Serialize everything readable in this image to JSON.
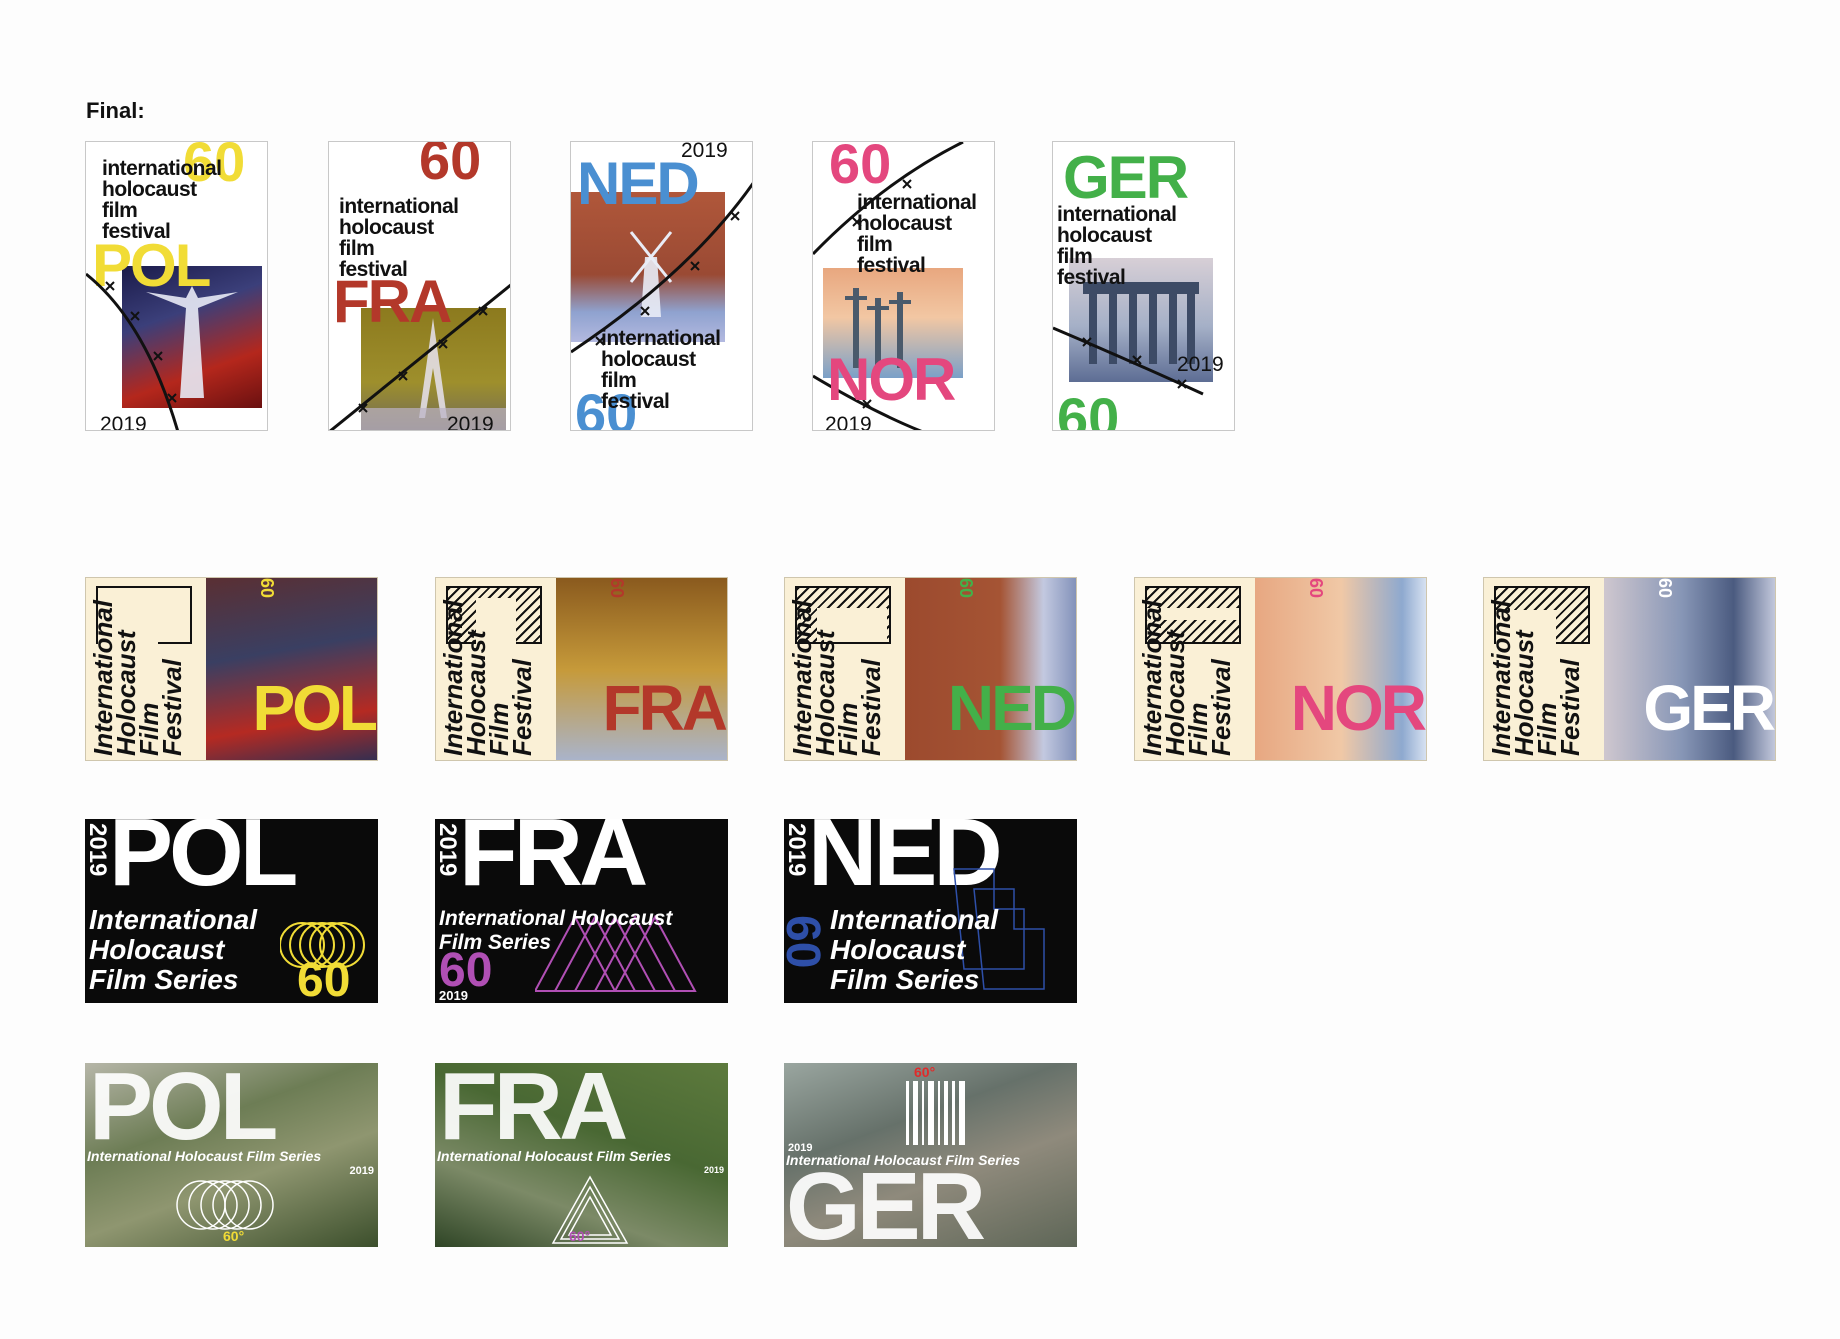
{
  "header": {
    "label": "Final:"
  },
  "colors": {
    "pol": "#f1dc36",
    "fra": "#b3382a",
    "ned": "#4a8fd1",
    "nor": "#e4477e",
    "ger": "#43b049",
    "fra_purple": "#b04fb4",
    "ned_blue": "#2e4fa8"
  },
  "posters": [
    {
      "code": "POL",
      "number": "60",
      "year": "2019",
      "title": [
        "international",
        "holocaust",
        "film",
        "festival"
      ]
    },
    {
      "code": "FRA",
      "number": "60",
      "year": "2019",
      "title": [
        "international",
        "holocaust",
        "film",
        "festival"
      ]
    },
    {
      "code": "NED",
      "number": "60",
      "year": "2019",
      "title": [
        "international",
        "holocaust",
        "film",
        "festival"
      ]
    },
    {
      "code": "NOR",
      "number": "60",
      "year": "2019",
      "title": [
        "international",
        "holocaust",
        "film",
        "festival"
      ]
    },
    {
      "code": "GER",
      "number": "60",
      "year": "2019",
      "title": [
        "international",
        "holocaust",
        "film",
        "festival"
      ]
    }
  ],
  "horizontal_cards": [
    {
      "code": "POL",
      "number": "60",
      "title": [
        "International",
        "Holocaust",
        "Film",
        "Festival"
      ]
    },
    {
      "code": "FRA",
      "number": "60",
      "title": [
        "International",
        "Holocaust",
        "Film",
        "Festival"
      ]
    },
    {
      "code": "NED",
      "number": "60",
      "title": [
        "International",
        "Holocaust",
        "Film",
        "Festival"
      ]
    },
    {
      "code": "NOR",
      "number": "60",
      "title": [
        "International",
        "Holocaust",
        "Film",
        "Festival"
      ]
    },
    {
      "code": "GER",
      "number": "60",
      "title": [
        "International",
        "Holocaust",
        "Film",
        "Festival"
      ]
    }
  ],
  "black_cards": [
    {
      "code": "POL",
      "year": "2019",
      "number": "60",
      "series": [
        "International",
        "Holocaust",
        "Film Series"
      ]
    },
    {
      "code": "FRA",
      "year": "2019",
      "number": "60",
      "series": [
        "International Holocaust",
        "Film Series"
      ]
    },
    {
      "code": "NED",
      "year": "2019",
      "number": "60",
      "series": [
        "International",
        "Holocaust",
        "Film Series"
      ]
    }
  ],
  "aerial_cards": [
    {
      "code": "POL",
      "series": "International Holocaust Film Series",
      "year": "2019",
      "degree": "60°"
    },
    {
      "code": "FRA",
      "series": "International Holocaust Film Series",
      "year": "2019",
      "degree": "60°"
    },
    {
      "code": "GER",
      "series": "International Holocaust Film Series",
      "year": "2019",
      "degree": "60°"
    }
  ]
}
